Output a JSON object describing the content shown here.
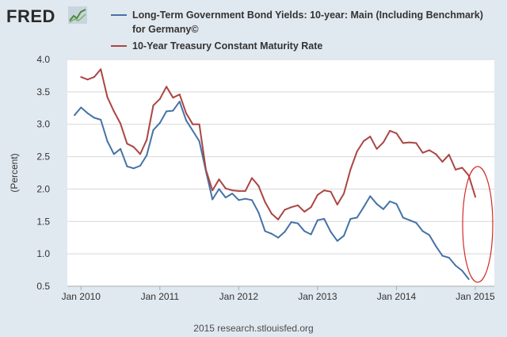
{
  "logo": {
    "text": "FRED",
    "mark_icon": "line-chart-icon"
  },
  "footer": {
    "text": "2015 research.stlouisfed.org"
  },
  "annotation": {
    "shape": "ellipse",
    "color": "#d42929"
  },
  "chart_data": {
    "type": "line",
    "title": "",
    "xlabel": "",
    "ylabel": "(Percent)",
    "ylim": [
      0.5,
      4.0
    ],
    "xlim": [
      "2009-12",
      "2015-01"
    ],
    "yticks": [
      "0.5",
      "1.0",
      "1.5",
      "2.0",
      "2.5",
      "3.0",
      "3.5",
      "4.0"
    ],
    "xticks": [
      {
        "label": "Jan 2010",
        "x": "2010-01"
      },
      {
        "label": "Jan 2011",
        "x": "2011-01"
      },
      {
        "label": "Jan 2012",
        "x": "2012-01"
      },
      {
        "label": "Jan 2013",
        "x": "2013-01"
      },
      {
        "label": "Jan 2014",
        "x": "2014-01"
      },
      {
        "label": "Jan 2015",
        "x": "2015-01"
      }
    ],
    "grid": "horizontal",
    "legend_position": "top",
    "background": "#ffffff",
    "series": [
      {
        "name": "Long-Term Government Bond Yields: 10-year: Main (Including Benchmark) for Germany©",
        "color": "#4572a7",
        "x": [
          "2009-12",
          "2010-01",
          "2010-02",
          "2010-03",
          "2010-04",
          "2010-05",
          "2010-06",
          "2010-07",
          "2010-08",
          "2010-09",
          "2010-10",
          "2010-11",
          "2010-12",
          "2011-01",
          "2011-02",
          "2011-03",
          "2011-04",
          "2011-05",
          "2011-06",
          "2011-07",
          "2011-08",
          "2011-09",
          "2011-10",
          "2011-11",
          "2011-12",
          "2012-01",
          "2012-02",
          "2012-03",
          "2012-04",
          "2012-05",
          "2012-06",
          "2012-07",
          "2012-08",
          "2012-09",
          "2012-10",
          "2012-11",
          "2012-12",
          "2013-01",
          "2013-02",
          "2013-03",
          "2013-04",
          "2013-05",
          "2013-06",
          "2013-07",
          "2013-08",
          "2013-09",
          "2013-10",
          "2013-11",
          "2013-12",
          "2014-01",
          "2014-02",
          "2014-03",
          "2014-04",
          "2014-05",
          "2014-06",
          "2014-07",
          "2014-08",
          "2014-09",
          "2014-10",
          "2014-11",
          "2014-12"
        ],
        "values": [
          3.14,
          3.26,
          3.17,
          3.1,
          3.07,
          2.74,
          2.54,
          2.62,
          2.35,
          2.32,
          2.36,
          2.52,
          2.91,
          3.02,
          3.2,
          3.21,
          3.35,
          3.06,
          2.9,
          2.74,
          2.28,
          1.84,
          2.0,
          1.87,
          1.93,
          1.83,
          1.85,
          1.83,
          1.64,
          1.35,
          1.31,
          1.25,
          1.34,
          1.49,
          1.47,
          1.35,
          1.3,
          1.52,
          1.54,
          1.34,
          1.2,
          1.28,
          1.54,
          1.56,
          1.72,
          1.89,
          1.77,
          1.69,
          1.81,
          1.77,
          1.56,
          1.52,
          1.48,
          1.35,
          1.29,
          1.12,
          0.97,
          0.94,
          0.82,
          0.74,
          0.61
        ]
      },
      {
        "name": "10-Year Treasury Constant Maturity Rate",
        "color": "#aa4643",
        "x": [
          "2010-01",
          "2010-02",
          "2010-03",
          "2010-04",
          "2010-05",
          "2010-06",
          "2010-07",
          "2010-08",
          "2010-09",
          "2010-10",
          "2010-11",
          "2010-12",
          "2011-01",
          "2011-02",
          "2011-03",
          "2011-04",
          "2011-05",
          "2011-06",
          "2011-07",
          "2011-08",
          "2011-09",
          "2011-10",
          "2011-11",
          "2011-12",
          "2012-01",
          "2012-02",
          "2012-03",
          "2012-04",
          "2012-05",
          "2012-06",
          "2012-07",
          "2012-08",
          "2012-09",
          "2012-10",
          "2012-11",
          "2012-12",
          "2013-01",
          "2013-02",
          "2013-03",
          "2013-04",
          "2013-05",
          "2013-06",
          "2013-07",
          "2013-08",
          "2013-09",
          "2013-10",
          "2013-11",
          "2013-12",
          "2014-01",
          "2014-02",
          "2014-03",
          "2014-04",
          "2014-05",
          "2014-06",
          "2014-07",
          "2014-08",
          "2014-09",
          "2014-10",
          "2014-11",
          "2014-12",
          "2015-01"
        ],
        "values": [
          3.73,
          3.69,
          3.73,
          3.85,
          3.42,
          3.2,
          3.01,
          2.7,
          2.65,
          2.54,
          2.76,
          3.29,
          3.39,
          3.58,
          3.41,
          3.46,
          3.17,
          3.0,
          3.0,
          2.3,
          1.98,
          2.15,
          2.01,
          1.98,
          1.97,
          1.97,
          2.17,
          2.05,
          1.8,
          1.62,
          1.53,
          1.68,
          1.72,
          1.75,
          1.65,
          1.72,
          1.91,
          1.98,
          1.96,
          1.76,
          1.93,
          2.3,
          2.58,
          2.74,
          2.81,
          2.62,
          2.72,
          2.9,
          2.86,
          2.71,
          2.72,
          2.71,
          2.56,
          2.6,
          2.54,
          2.42,
          2.53,
          2.3,
          2.33,
          2.21,
          1.88
        ]
      }
    ]
  }
}
